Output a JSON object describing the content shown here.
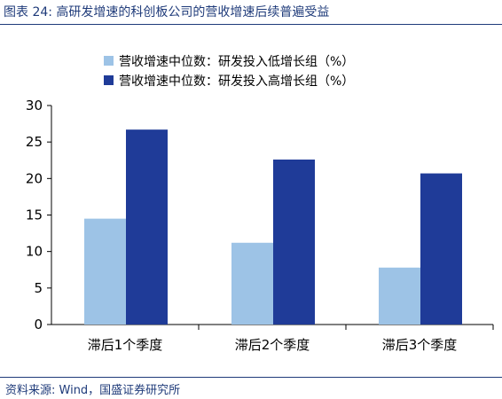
{
  "header": {
    "title": "图表 24: 高研发增速的科创板公司的营收增速后续普遍受益"
  },
  "footer": {
    "source": "资料来源: Wind，国盛证券研究所"
  },
  "chart_data": {
    "type": "bar",
    "categories": [
      "滞后1个季度",
      "滞后2个季度",
      "滞后3个季度"
    ],
    "series": [
      {
        "name": "营收增速中位数：研发投入低增长组（%）",
        "values": [
          14.5,
          11.2,
          7.8
        ],
        "color": "#9dc3e6"
      },
      {
        "name": "营收增速中位数：研发投入高增长组（%）",
        "values": [
          26.7,
          22.6,
          20.7
        ],
        "color": "#1f3b98"
      }
    ],
    "ylim": [
      0,
      30
    ],
    "yticks": [
      0,
      5,
      10,
      15,
      20,
      25,
      30
    ],
    "grid": false,
    "legend_position": "top"
  }
}
